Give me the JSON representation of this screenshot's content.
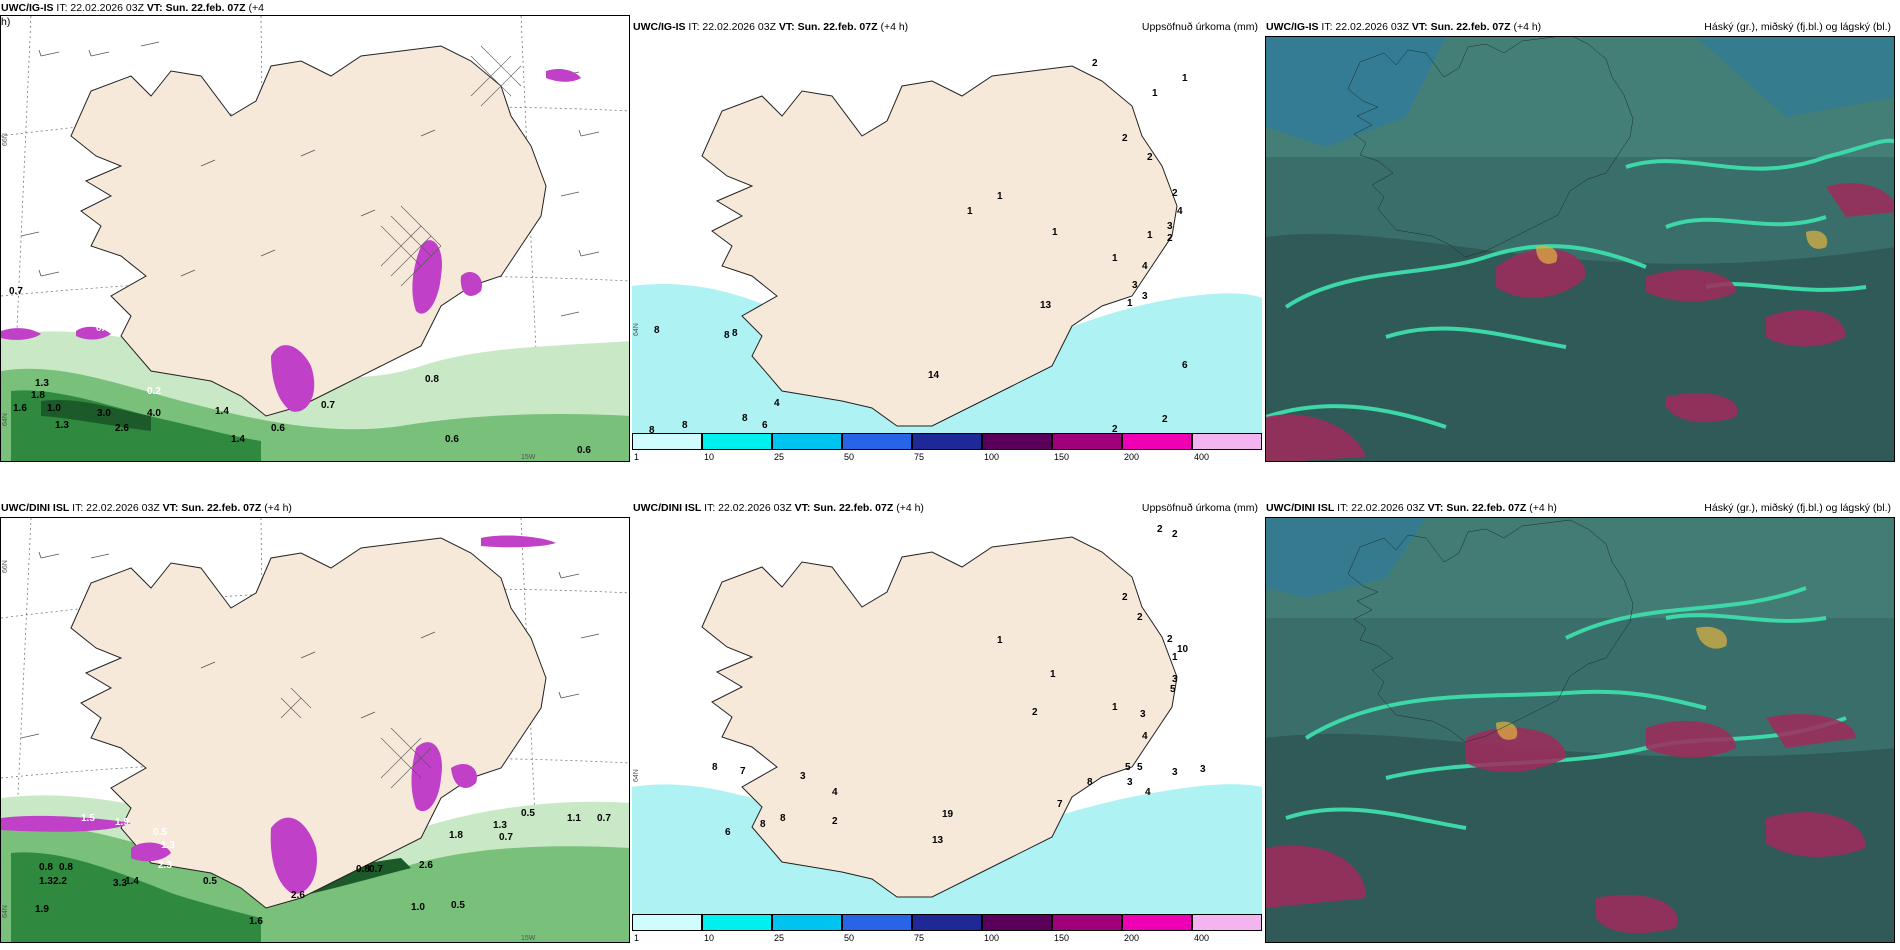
{
  "panels": {
    "top_left": {
      "model": "UWC/IG-IS",
      "it": "IT: 22.02.2026 03Z",
      "vt": "VT: Sun. 22.feb. 07Z",
      "lead": "(+4",
      "lead2": "h)",
      "lat_label": "66N",
      "lat_label2": "64N",
      "lon_label": "15W",
      "labels": [
        "0.7",
        "0.6",
        "1.3",
        "1.8",
        "1.6",
        "1.0",
        "0.2",
        "3.0",
        "4.0",
        "1.3",
        "2.6",
        "0.6",
        "0.8",
        "0.6",
        "0.6",
        "1.4",
        "0.7",
        "1.4"
      ]
    },
    "top_mid": {
      "model": "UWC/IG-IS",
      "it": "IT: 22.02.2026 03Z",
      "vt": "VT: Sun. 22.feb. 07Z",
      "lead": "(+4 h)",
      "right": "Uppsöfnuð úrkoma (mm)",
      "lat_label": "64N",
      "labels": [
        "2",
        "1",
        "1",
        "2",
        "2",
        "1",
        "1",
        "1",
        "2",
        "4",
        "3",
        "1",
        "2",
        "1",
        "3",
        "4",
        "3",
        "8",
        "8",
        "8",
        "4",
        "8",
        "8",
        "6",
        "8",
        "6",
        "2",
        "2",
        "1",
        "14",
        "13"
      ]
    },
    "top_right": {
      "model": "UWC/IG-IS",
      "it": "IT: 22.02.2026 03Z",
      "vt": "VT: Sun. 22.feb. 07Z",
      "lead": "(+4 h)",
      "right": "Háský (gr.), miðský (fj.bl.) og lágský (bl.)"
    },
    "bot_left": {
      "model": "UWC/DINI ISL",
      "it": "IT: 22.02.2026 03Z",
      "vt": "VT: Sun. 22.feb. 07Z",
      "lead": "(+4 h)",
      "lat_label": "66N",
      "lat_label2": "64N",
      "lon_label": "15W",
      "labels": [
        "1.5",
        "1.9",
        "0.5",
        "1.3",
        "2.3",
        "0.8",
        "0.8",
        "1.3",
        "2.2",
        "3.3",
        "1.4",
        "0.5",
        "1.9",
        "1.6",
        "2.6",
        "0.8",
        "0.7",
        "2.6",
        "1.0",
        "0.5",
        "0.5",
        "1.1",
        "0.7",
        "0.7",
        "1.3",
        "1.8"
      ]
    },
    "bot_mid": {
      "model": "UWC/DINI ISL",
      "it": "IT: 22.02.2026 03Z",
      "vt": "VT: Sun. 22.feb. 07Z",
      "lead": "(+4 h)",
      "right": "Uppsöfnuð úrkoma (mm)",
      "lat_label": "64N",
      "labels": [
        "2",
        "2",
        "2",
        "2",
        "1",
        "1",
        "2",
        "1",
        "3",
        "10",
        "5",
        "1",
        "2",
        "3",
        "4",
        "5",
        "5",
        "3",
        "3",
        "8",
        "3",
        "4",
        "8",
        "7",
        "3",
        "4",
        "2",
        "8",
        "8",
        "6",
        "7",
        "13",
        "19"
      ]
    },
    "bot_right": {
      "model": "UWC/DINI ISL",
      "it": "IT: 22.02.2026 03Z",
      "vt": "VT: Sun. 22.feb. 07Z",
      "lead": "(+4 h)",
      "right": "Háský (gr.), miðský (fj.bl.) og lágský (bl.)"
    }
  },
  "colorbar": {
    "ticks": [
      "1",
      "10",
      "25",
      "50",
      "75",
      "100",
      "150",
      "200",
      "400"
    ],
    "colors": [
      "#cffcfc",
      "#00f0f0",
      "#00c4f0",
      "#2864e6",
      "#1e2896",
      "#5a005a",
      "#a0007a",
      "#f000b4",
      "#f4b4f0"
    ]
  },
  "colors": {
    "land": "#f7e9da",
    "sea": "#ffffff",
    "precip_green": "#3d9a48",
    "precip_light": "#c9e9c6",
    "snow_purple": "#c040c8",
    "cloud_dark": "#2f5a58",
    "cloud_teal": "#3dd7a8",
    "cloud_red": "#a02a5a"
  }
}
